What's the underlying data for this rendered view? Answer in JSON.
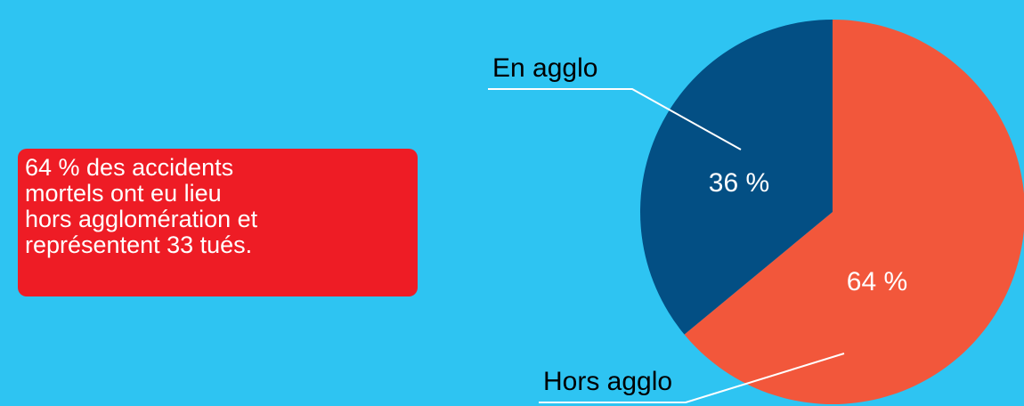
{
  "chart_data": {
    "type": "pie",
    "categories": [
      "Hors agglo",
      "En agglo"
    ],
    "values": [
      64,
      36
    ],
    "value_labels": [
      "64 %",
      "36 %"
    ],
    "colors": [
      "#f2573b",
      "#034f84"
    ],
    "annotation": [
      "64 % des accidents",
      "mortels ont eu lieu",
      "hors agglomération et",
      "représentent 33 tués."
    ]
  }
}
